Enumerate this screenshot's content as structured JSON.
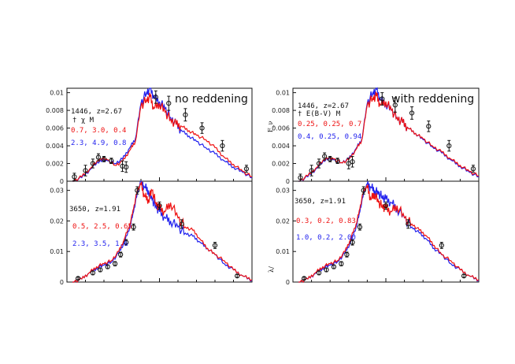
{
  "figure": {
    "colors": {
      "red": "#ee1111",
      "blue": "#2222ee",
      "black": "#111111"
    },
    "left_label": "no reddening",
    "right_label": "with reddening"
  },
  "chart_data": [
    {
      "type": "line",
      "id": "tl",
      "title_text": "no reddening",
      "ylim": [
        0,
        0.0105
      ],
      "yticks": [
        0,
        0.002,
        0.004,
        0.006,
        0.008,
        0.01
      ],
      "ytick_labels": [
        "0",
        "0.002",
        "0.004",
        "0.006",
        "0.008",
        "0.01"
      ],
      "xlim": [
        0,
        1
      ],
      "ylabel": "",
      "annotations": {
        "id_line": "1446, z=2.67",
        "param_line": "†  χ   M",
        "red_params": "0.7, 3.0, 0.4",
        "blue_params": "2.3, 4.9, 0.8"
      },
      "series": [
        {
          "name": "red model",
          "color": "#ee1111",
          "x": [
            0.03,
            0.08,
            0.13,
            0.18,
            0.22,
            0.26,
            0.3,
            0.34,
            0.37,
            0.4,
            0.43,
            0.45,
            0.47,
            0.5,
            0.53,
            0.56,
            0.59,
            0.62,
            0.66,
            0.7,
            0.75,
            0.8,
            0.85,
            0.9,
            0.95,
            1.0
          ],
          "y": [
            0.0,
            0.0005,
            0.0015,
            0.0026,
            0.0024,
            0.0018,
            0.0022,
            0.0035,
            0.0045,
            0.0085,
            0.0092,
            0.0095,
            0.0082,
            0.0088,
            0.0078,
            0.007,
            0.0064,
            0.0062,
            0.0057,
            0.0052,
            0.0047,
            0.0038,
            0.0027,
            0.0019,
            0.0011,
            0.0005
          ]
        },
        {
          "name": "blue model",
          "color": "#2222ee",
          "x": [
            0.03,
            0.08,
            0.13,
            0.18,
            0.22,
            0.26,
            0.3,
            0.34,
            0.37,
            0.4,
            0.43,
            0.45,
            0.47,
            0.5,
            0.53,
            0.56,
            0.59,
            0.62,
            0.66,
            0.7,
            0.75,
            0.8,
            0.85,
            0.9,
            0.95,
            1.0
          ],
          "y": [
            0.0,
            0.0004,
            0.0014,
            0.0024,
            0.0023,
            0.002,
            0.0025,
            0.0038,
            0.0048,
            0.0088,
            0.01,
            0.0105,
            0.0095,
            0.009,
            0.0082,
            0.0072,
            0.0064,
            0.0057,
            0.0051,
            0.0045,
            0.0038,
            0.0031,
            0.0023,
            0.0016,
            0.001,
            0.0004
          ]
        }
      ],
      "observations": {
        "x": [
          0.04,
          0.1,
          0.14,
          0.17,
          0.2,
          0.24,
          0.3,
          0.32,
          0.48,
          0.55,
          0.64,
          0.73,
          0.84,
          0.97
        ],
        "y": [
          0.0005,
          0.0012,
          0.002,
          0.0027,
          0.0025,
          0.0023,
          0.0017,
          0.0016,
          0.0095,
          0.0088,
          0.0075,
          0.006,
          0.004,
          0.0014
        ],
        "err": [
          0.0004,
          0.0006,
          0.0005,
          0.0004,
          0.0003,
          0.0003,
          0.0006,
          0.0006,
          0.0007,
          0.0008,
          0.0007,
          0.0006,
          0.0006,
          0.0004
        ]
      }
    },
    {
      "type": "line",
      "id": "tr",
      "title_text": "with reddening",
      "ylim": [
        0,
        0.0105
      ],
      "yticks": [
        0,
        0.002,
        0.004,
        0.006,
        0.008,
        0.01
      ],
      "ytick_labels": [
        "0",
        "0.002",
        "0.004",
        "0.006",
        "0.008",
        "0.01"
      ],
      "xlim": [
        0,
        1
      ],
      "ylabel": "F_ν",
      "annotations": {
        "id_line": "1446, z=2.67",
        "param_line": "†  E(B-V)  M",
        "red_params": "0.25, 0.25, 0.7",
        "blue_params": "0.4, 0.25, 0.94"
      },
      "series": [
        {
          "name": "red model",
          "color": "#ee1111",
          "x": [
            0.03,
            0.08,
            0.13,
            0.18,
            0.22,
            0.26,
            0.3,
            0.34,
            0.37,
            0.4,
            0.43,
            0.45,
            0.47,
            0.5,
            0.53,
            0.56,
            0.59,
            0.62,
            0.66,
            0.7,
            0.75,
            0.8,
            0.85,
            0.9,
            0.95,
            1.0
          ],
          "y": [
            0.0,
            0.0006,
            0.0016,
            0.0027,
            0.0025,
            0.0021,
            0.0024,
            0.0036,
            0.0046,
            0.0086,
            0.0094,
            0.0096,
            0.0086,
            0.009,
            0.008,
            0.0072,
            0.0066,
            0.006,
            0.0054,
            0.0048,
            0.004,
            0.0033,
            0.0025,
            0.0018,
            0.0011,
            0.0006
          ]
        },
        {
          "name": "blue model",
          "color": "#2222ee",
          "x": [
            0.03,
            0.08,
            0.13,
            0.18,
            0.22,
            0.26,
            0.3,
            0.34,
            0.37,
            0.4,
            0.43,
            0.45,
            0.47,
            0.5,
            0.53,
            0.56,
            0.59,
            0.62,
            0.66,
            0.7,
            0.75,
            0.8,
            0.85,
            0.9,
            0.95,
            1.0
          ],
          "y": [
            0.0,
            0.0005,
            0.0015,
            0.0026,
            0.0024,
            0.0021,
            0.0025,
            0.0037,
            0.0047,
            0.0088,
            0.01,
            0.0104,
            0.0092,
            0.0088,
            0.008,
            0.0072,
            0.0066,
            0.006,
            0.0054,
            0.0047,
            0.0039,
            0.0032,
            0.0024,
            0.0017,
            0.001,
            0.0005
          ]
        }
      ],
      "observations": {
        "x": [
          0.04,
          0.1,
          0.14,
          0.17,
          0.2,
          0.24,
          0.3,
          0.32,
          0.48,
          0.55,
          0.64,
          0.73,
          0.84,
          0.97
        ],
        "y": [
          0.0004,
          0.0012,
          0.002,
          0.0028,
          0.0025,
          0.0023,
          0.002,
          0.0022,
          0.0093,
          0.0086,
          0.0077,
          0.0062,
          0.004,
          0.0014
        ],
        "err": [
          0.0004,
          0.0006,
          0.0005,
          0.0004,
          0.0003,
          0.0003,
          0.0006,
          0.0006,
          0.0007,
          0.0008,
          0.0007,
          0.0006,
          0.0006,
          0.0004
        ]
      }
    },
    {
      "type": "line",
      "id": "bl",
      "title_text": "",
      "ylim": [
        0,
        0.033
      ],
      "yticks": [
        0,
        0.01,
        0.02,
        0.03
      ],
      "ytick_labels": [
        "0",
        "0.01",
        "0.02",
        "0.03"
      ],
      "xlim": [
        0,
        1
      ],
      "ylabel": "",
      "annotations": {
        "id_line": "3650, z=1.91",
        "red_params": "0.5, 2.5, 0.65",
        "blue_params": "2.3, 3.5, 1.6"
      },
      "series": [
        {
          "name": "red model",
          "color": "#ee1111",
          "x": [
            0.03,
            0.08,
            0.12,
            0.16,
            0.2,
            0.24,
            0.28,
            0.31,
            0.34,
            0.36,
            0.38,
            0.4,
            0.42,
            0.44,
            0.46,
            0.48,
            0.5,
            0.53,
            0.56,
            0.6,
            0.64,
            0.68,
            0.72,
            0.76,
            0.8,
            0.85,
            0.9,
            0.95,
            1.0
          ],
          "y": [
            0.0,
            0.001,
            0.003,
            0.005,
            0.006,
            0.007,
            0.01,
            0.014,
            0.019,
            0.024,
            0.03,
            0.032,
            0.028,
            0.027,
            0.03,
            0.026,
            0.024,
            0.023,
            0.026,
            0.021,
            0.018,
            0.017,
            0.014,
            0.011,
            0.009,
            0.007,
            0.004,
            0.002,
            0.0008
          ]
        },
        {
          "name": "blue model",
          "color": "#2222ee",
          "x": [
            0.03,
            0.08,
            0.12,
            0.16,
            0.2,
            0.24,
            0.28,
            0.31,
            0.34,
            0.36,
            0.38,
            0.4,
            0.42,
            0.44,
            0.46,
            0.48,
            0.5,
            0.53,
            0.56,
            0.6,
            0.64,
            0.68,
            0.72,
            0.76,
            0.8,
            0.85,
            0.9,
            0.95,
            1.0
          ],
          "y": [
            0.0,
            0.001,
            0.003,
            0.0045,
            0.0055,
            0.0065,
            0.0095,
            0.013,
            0.018,
            0.023,
            0.029,
            0.033,
            0.031,
            0.03,
            0.027,
            0.025,
            0.023,
            0.021,
            0.02,
            0.018,
            0.016,
            0.015,
            0.013,
            0.011,
            0.009,
            0.006,
            0.004,
            0.002,
            0.0006
          ]
        }
      ],
      "observations": {
        "x": [
          0.06,
          0.14,
          0.18,
          0.22,
          0.26,
          0.29,
          0.32,
          0.36,
          0.38,
          0.5,
          0.62,
          0.8,
          0.92
        ],
        "y": [
          0.0012,
          0.003,
          0.004,
          0.005,
          0.006,
          0.009,
          0.013,
          0.018,
          0.03,
          0.025,
          0.019,
          0.012,
          0.002
        ],
        "err": [
          0.0004,
          0.0006,
          0.0006,
          0.0006,
          0.0007,
          0.0008,
          0.0009,
          0.001,
          0.0012,
          0.0012,
          0.0014,
          0.001,
          0.0005
        ]
      }
    },
    {
      "type": "line",
      "id": "br",
      "title_text": "",
      "ylim": [
        0,
        0.033
      ],
      "yticks": [
        0,
        0.01,
        0.02,
        0.03
      ],
      "ytick_labels": [
        "0",
        "0.01",
        "0.02",
        "0.03"
      ],
      "xlim": [
        0,
        1
      ],
      "ylabel": "λ/",
      "annotations": {
        "id_line": "3650, z=1.91",
        "red_params": "0.3, 0.2, 0.83",
        "blue_params": "1.0, 0.2, 2.00"
      },
      "series": [
        {
          "name": "red model",
          "color": "#ee1111",
          "x": [
            0.03,
            0.08,
            0.12,
            0.16,
            0.2,
            0.24,
            0.28,
            0.31,
            0.34,
            0.36,
            0.38,
            0.4,
            0.42,
            0.44,
            0.46,
            0.48,
            0.5,
            0.53,
            0.56,
            0.6,
            0.64,
            0.68,
            0.72,
            0.76,
            0.8,
            0.85,
            0.9,
            0.95,
            1.0
          ],
          "y": [
            0.0,
            0.001,
            0.003,
            0.005,
            0.006,
            0.007,
            0.01,
            0.014,
            0.019,
            0.024,
            0.03,
            0.031,
            0.027,
            0.029,
            0.026,
            0.025,
            0.024,
            0.023,
            0.025,
            0.021,
            0.019,
            0.017,
            0.015,
            0.012,
            0.009,
            0.007,
            0.004,
            0.002,
            0.0008
          ]
        },
        {
          "name": "blue model",
          "color": "#2222ee",
          "x": [
            0.03,
            0.08,
            0.12,
            0.16,
            0.2,
            0.24,
            0.28,
            0.31,
            0.34,
            0.36,
            0.38,
            0.4,
            0.42,
            0.44,
            0.46,
            0.48,
            0.5,
            0.53,
            0.56,
            0.6,
            0.64,
            0.68,
            0.72,
            0.76,
            0.8,
            0.85,
            0.9,
            0.95,
            1.0
          ],
          "y": [
            0.0,
            0.001,
            0.0028,
            0.0045,
            0.0055,
            0.0066,
            0.0095,
            0.013,
            0.018,
            0.023,
            0.029,
            0.032,
            0.031,
            0.03,
            0.029,
            0.028,
            0.027,
            0.026,
            0.024,
            0.021,
            0.018,
            0.016,
            0.014,
            0.011,
            0.009,
            0.006,
            0.004,
            0.002,
            0.0006
          ]
        }
      ],
      "observations": {
        "x": [
          0.06,
          0.14,
          0.18,
          0.22,
          0.26,
          0.29,
          0.32,
          0.36,
          0.38,
          0.5,
          0.62,
          0.8,
          0.92
        ],
        "y": [
          0.0012,
          0.003,
          0.004,
          0.005,
          0.006,
          0.009,
          0.013,
          0.018,
          0.03,
          0.025,
          0.019,
          0.012,
          0.002
        ],
        "err": [
          0.0004,
          0.0006,
          0.0006,
          0.0006,
          0.0007,
          0.0008,
          0.0009,
          0.001,
          0.0012,
          0.0012,
          0.0014,
          0.001,
          0.0005
        ]
      }
    }
  ]
}
